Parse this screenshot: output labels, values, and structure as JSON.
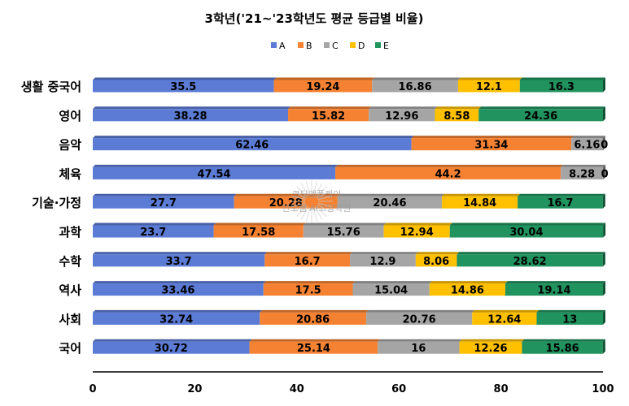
{
  "chart_data": {
    "type": "bar",
    "orientation": "horizontal",
    "stacked": true,
    "title": "3학년('21~'23학년도 평균 등급별 비율)",
    "xlabel": "",
    "ylabel": "",
    "xlim": [
      0,
      100
    ],
    "x_ticks": [
      "0",
      "20",
      "40",
      "60",
      "80",
      "100"
    ],
    "grid": false,
    "legend_position": "top",
    "categories": [
      "생활 중국어",
      "영어",
      "음악",
      "체육",
      "기술·가정",
      "과학",
      "수학",
      "역사",
      "사회",
      "국어"
    ],
    "series": [
      {
        "name": "A",
        "color": "#5b7bd5",
        "values": [
          35.5,
          38.28,
          62.46,
          47.54,
          27.7,
          23.7,
          33.7,
          33.46,
          32.74,
          30.72
        ]
      },
      {
        "name": "B",
        "color": "#f58232",
        "values": [
          19.24,
          15.82,
          31.34,
          44.2,
          20.28,
          17.58,
          16.7,
          17.5,
          20.86,
          25.14
        ]
      },
      {
        "name": "C",
        "color": "#a5a5a5",
        "values": [
          16.86,
          12.96,
          6.16,
          8.28,
          20.46,
          15.76,
          12.9,
          15.04,
          20.76,
          16
        ]
      },
      {
        "name": "D",
        "color": "#ffc000",
        "values": [
          12.1,
          8.58,
          0,
          0,
          14.84,
          12.94,
          8.06,
          14.86,
          12.64,
          12.26
        ]
      },
      {
        "name": "E",
        "color": "#20935f",
        "values": [
          16.3,
          24.36,
          0,
          0,
          16.7,
          30.04,
          28.62,
          19.14,
          13,
          15.86
        ]
      }
    ],
    "value_labels": [
      [
        "35.5",
        "19.24",
        "16.86",
        "12.1",
        "16.3"
      ],
      [
        "38.28",
        "15.82",
        "12.96",
        "8.58",
        "24.36"
      ],
      [
        "62.46",
        "31.34",
        "6.16",
        "0",
        ""
      ],
      [
        "47.54",
        "44.2",
        "8.28",
        "0",
        ""
      ],
      [
        "27.7",
        "20.28",
        "20.46",
        "14.84",
        "16.7"
      ],
      [
        "23.7",
        "17.58",
        "15.76",
        "12.94",
        "30.04"
      ],
      [
        "33.7",
        "16.7",
        "12.9",
        "8.06",
        "28.62"
      ],
      [
        "33.46",
        "17.5",
        "15.04",
        "14.86",
        "19.14"
      ],
      [
        "32.74",
        "20.86",
        "20.76",
        "12.64",
        "13"
      ],
      [
        "30.72",
        "25.14",
        "16",
        "12.26",
        "15.86"
      ]
    ],
    "watermark_lines": [
      "코딩앤플레이",
      "안오쌤 AI코딩학원"
    ]
  }
}
